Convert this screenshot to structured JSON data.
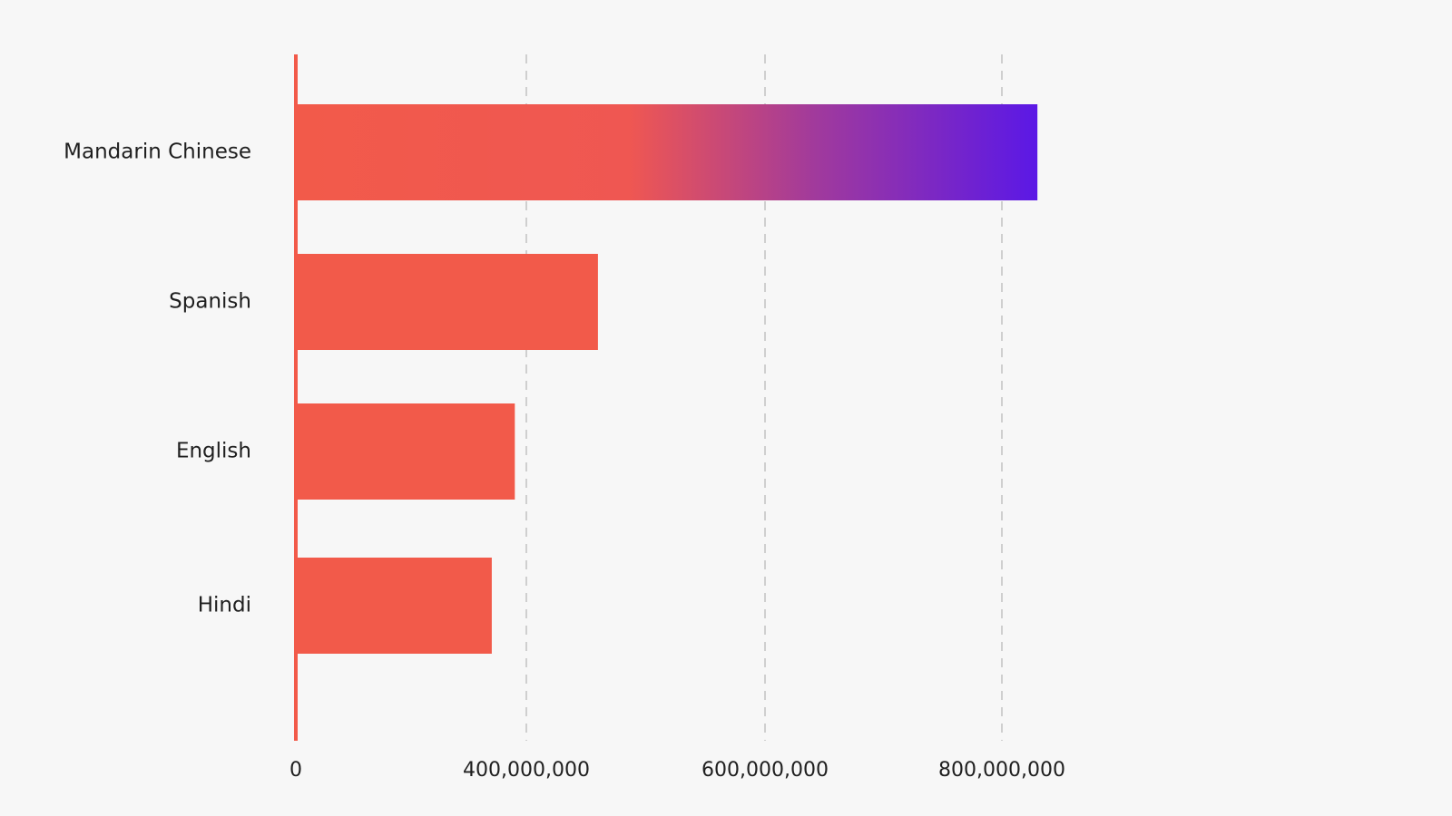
{
  "chart_data": {
    "type": "bar",
    "orientation": "horizontal",
    "categories": [
      "Mandarin Chinese",
      "Spanish",
      "English",
      "Hindi"
    ],
    "values": [
      830000000,
      460000000,
      380000000,
      340000000
    ],
    "xticks": [
      {
        "value": 0,
        "label": "0"
      },
      {
        "value": 400000000,
        "label": "400,000,000"
      },
      {
        "value": 600000000,
        "label": "600,000,000"
      },
      {
        "value": 800000000,
        "label": "800,000,000"
      }
    ],
    "title": "",
    "xlabel": "",
    "ylabel": "",
    "grid": "vertical dashed",
    "legend": "none",
    "colors": {
      "bar": "#f25a4a",
      "gradient_end": "#5b18e6",
      "axis": "#f25a4a",
      "grid": "#cfcfcf",
      "background": "#f7f7f7"
    }
  }
}
